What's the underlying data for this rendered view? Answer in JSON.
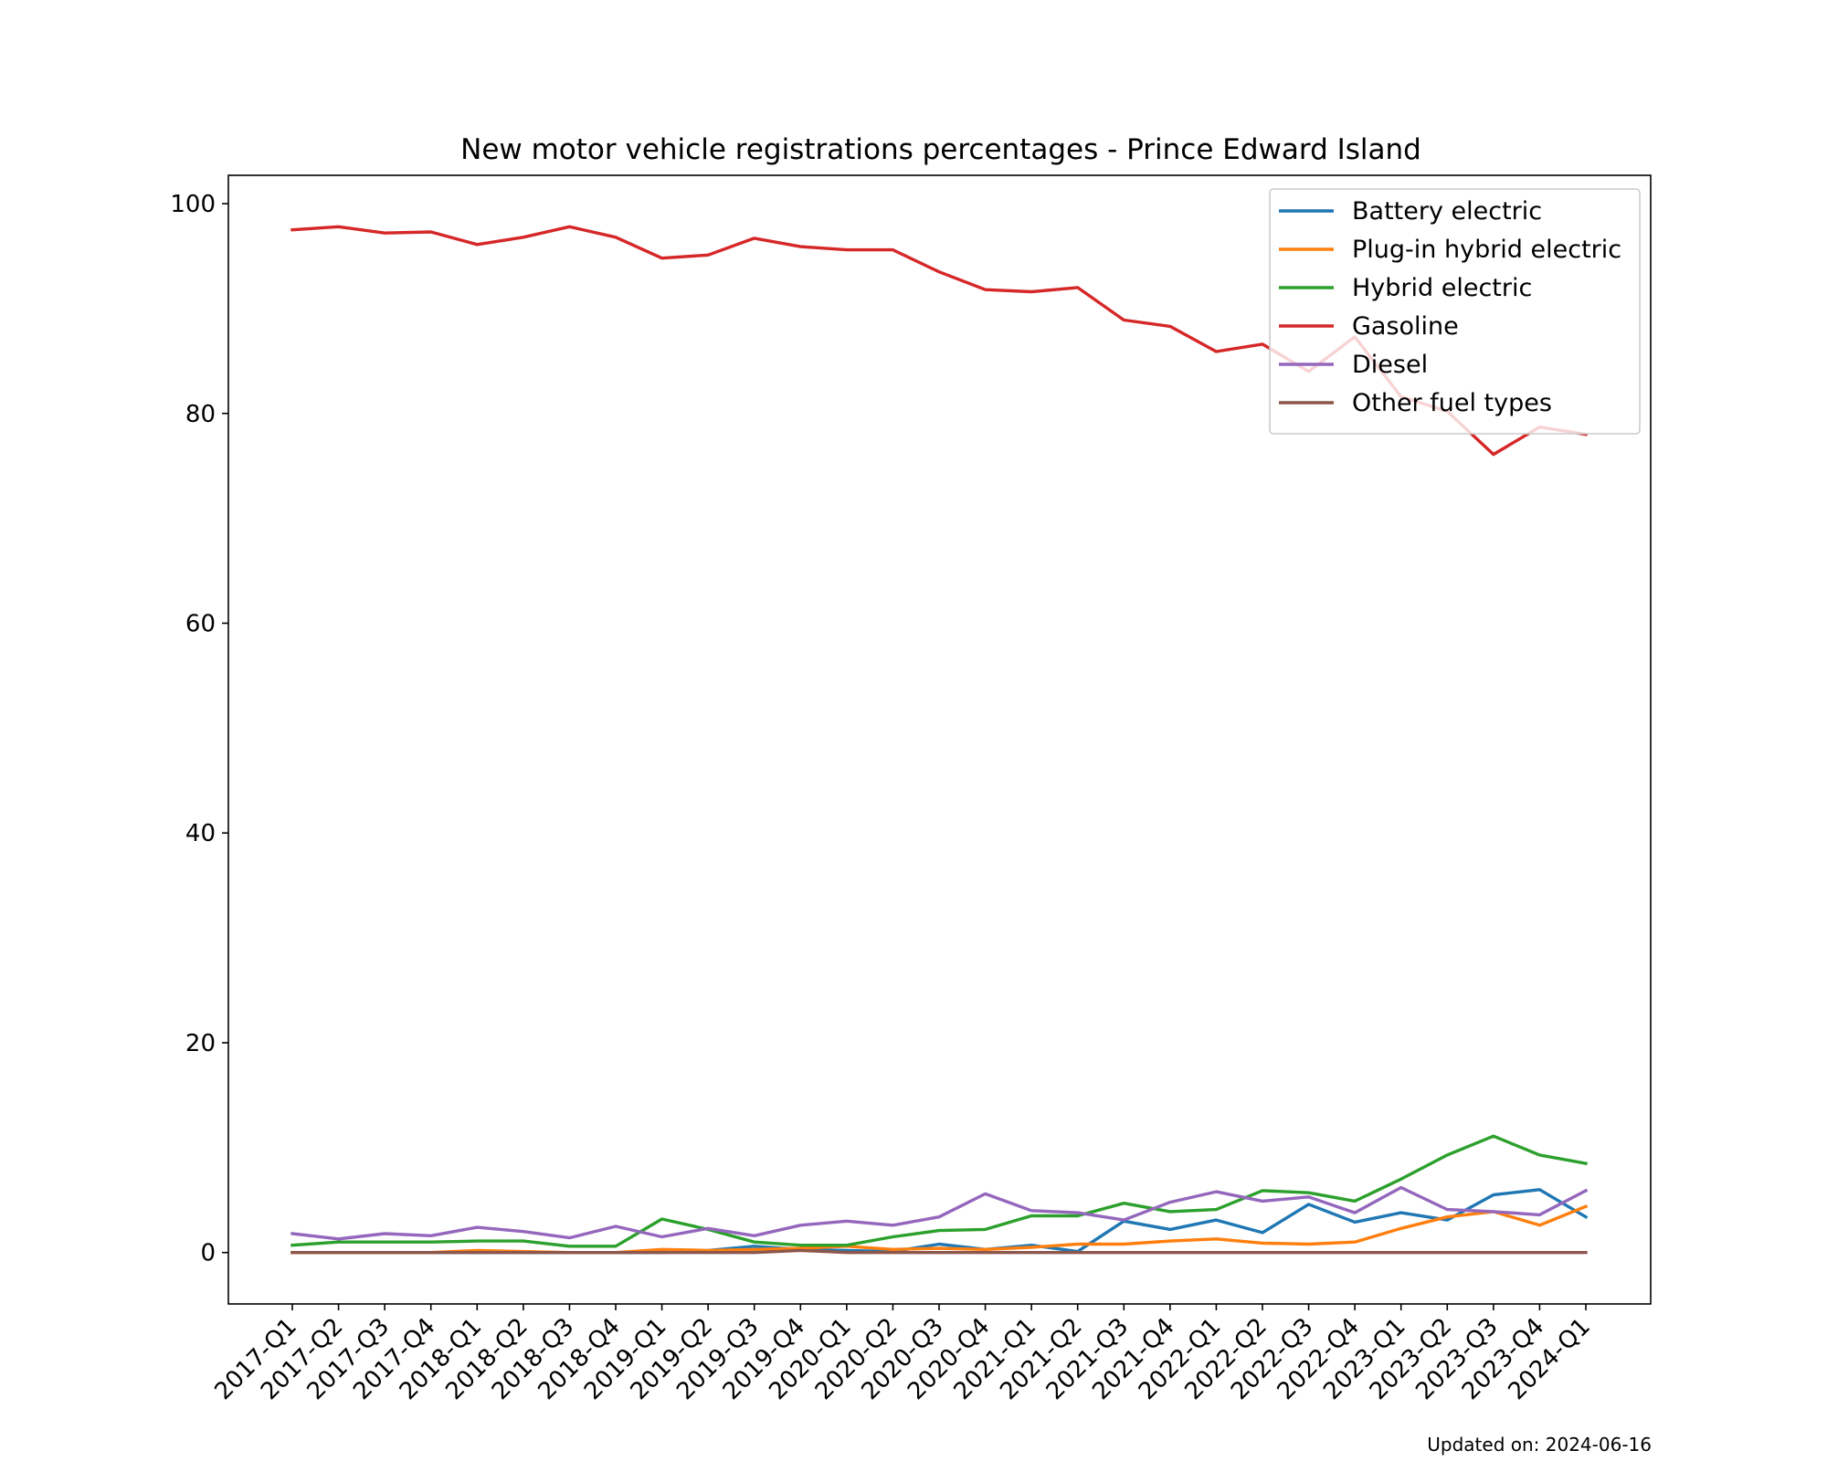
{
  "footer": {
    "updated": "Updated on: 2024-06-16"
  },
  "chart_data": {
    "type": "line",
    "title": "New motor vehicle registrations percentages - Prince Edward Island",
    "xlabel": "",
    "ylabel": "",
    "ylim": [
      -4.9,
      102.7
    ],
    "yticks": [
      0,
      20,
      40,
      60,
      80,
      100
    ],
    "grid": false,
    "legend_position": "top-right",
    "categories": [
      "2017-Q1",
      "2017-Q2",
      "2017-Q3",
      "2017-Q4",
      "2018-Q1",
      "2018-Q2",
      "2018-Q3",
      "2018-Q4",
      "2019-Q1",
      "2019-Q2",
      "2019-Q3",
      "2019-Q4",
      "2020-Q1",
      "2020-Q2",
      "2020-Q3",
      "2020-Q4",
      "2021-Q1",
      "2021-Q2",
      "2021-Q3",
      "2021-Q4",
      "2022-Q1",
      "2022-Q2",
      "2022-Q3",
      "2022-Q4",
      "2023-Q1",
      "2023-Q2",
      "2023-Q3",
      "2023-Q4",
      "2024-Q1"
    ],
    "series": [
      {
        "name": "Battery electric",
        "color": "#1f77b4",
        "values": [
          0,
          0,
          0,
          0,
          0,
          0,
          0,
          0,
          0,
          0.2,
          0.6,
          0.3,
          0.2,
          0.1,
          0.8,
          0.3,
          0.7,
          0.1,
          3.0,
          2.2,
          3.1,
          1.9,
          4.6,
          2.9,
          3.8,
          3.1,
          5.5,
          6.0,
          3.4
        ]
      },
      {
        "name": "Plug-in hybrid electric",
        "color": "#ff7f0e",
        "values": [
          0,
          0,
          0,
          0,
          0.2,
          0.1,
          0,
          0,
          0.3,
          0.2,
          0.3,
          0.4,
          0.6,
          0.3,
          0.4,
          0.3,
          0.5,
          0.8,
          0.8,
          1.1,
          1.3,
          0.9,
          0.8,
          1.0,
          2.3,
          3.4,
          3.9,
          2.6,
          4.4
        ]
      },
      {
        "name": "Hybrid electric",
        "color": "#2ca02c",
        "values": [
          0.7,
          1.0,
          1.0,
          1.0,
          1.1,
          1.1,
          0.6,
          0.6,
          3.2,
          2.2,
          1.0,
          0.7,
          0.7,
          1.5,
          2.1,
          2.2,
          3.5,
          3.5,
          4.7,
          3.9,
          4.1,
          5.9,
          5.7,
          4.9,
          7.0,
          9.3,
          11.1,
          9.3,
          8.5
        ]
      },
      {
        "name": "Gasoline",
        "color": "#d62728",
        "values": [
          97.5,
          97.8,
          97.2,
          97.3,
          96.1,
          96.8,
          97.8,
          96.8,
          94.8,
          95.1,
          96.7,
          95.9,
          95.6,
          95.6,
          93.5,
          91.8,
          91.6,
          92.0,
          88.9,
          88.3,
          85.9,
          86.6,
          84.0,
          87.3,
          81.6,
          80.2,
          76.1,
          78.7,
          78.0
        ]
      },
      {
        "name": "Diesel",
        "color": "#9467bd",
        "values": [
          1.8,
          1.3,
          1.8,
          1.6,
          2.4,
          2.0,
          1.4,
          2.5,
          1.5,
          2.3,
          1.6,
          2.6,
          3.0,
          2.6,
          3.4,
          5.6,
          4.0,
          3.8,
          3.1,
          4.8,
          5.8,
          4.9,
          5.3,
          3.8,
          6.2,
          4.1,
          3.9,
          3.6,
          5.9
        ]
      },
      {
        "name": "Other fuel types",
        "color": "#8c564b",
        "values": [
          0,
          0,
          0,
          0,
          0,
          0,
          0,
          0,
          0,
          0,
          0,
          0.2,
          0,
          0,
          0,
          0,
          0,
          0,
          0,
          0,
          0,
          0,
          0,
          0,
          0,
          0,
          0,
          0,
          0
        ]
      }
    ]
  }
}
